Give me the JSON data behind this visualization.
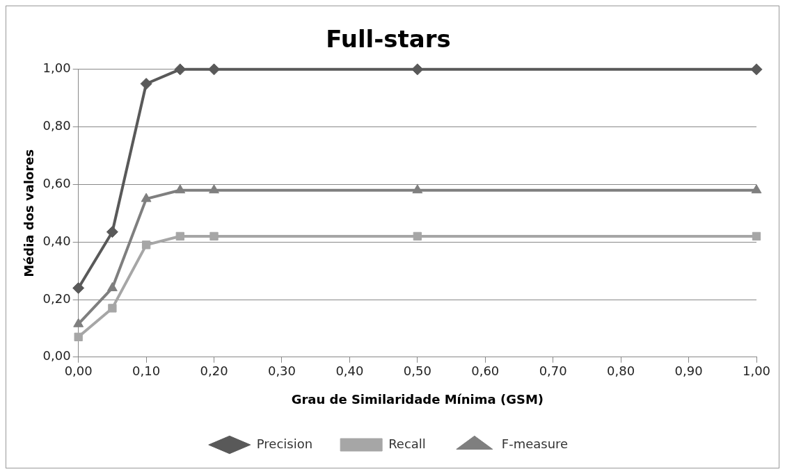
{
  "chart_data": {
    "type": "line",
    "title": "Full-stars",
    "xlabel": "Grau de Similaridade Mínima (GSM)",
    "ylabel": "Média dos valores",
    "x": [
      0,
      0.05,
      0.1,
      0.15,
      0.2,
      0.5,
      1
    ],
    "series": [
      {
        "name": "Precision",
        "color": "#595959",
        "marker": "diamond",
        "values": [
          0.24,
          0.435,
          0.95,
          1,
          1,
          1,
          1
        ]
      },
      {
        "name": "Recall",
        "color": "#a6a6a6",
        "marker": "square",
        "values": [
          0.07,
          0.17,
          0.39,
          0.42,
          0.42,
          0.42,
          0.42
        ]
      },
      {
        "name": "F-measure",
        "color": "#7f7f7f",
        "marker": "triangle",
        "values": [
          0.115,
          0.24,
          0.55,
          0.58,
          0.58,
          0.58,
          0.58
        ]
      }
    ],
    "xlim": [
      0,
      1
    ],
    "xticks": [
      {
        "value": 0,
        "label": "0,00"
      },
      {
        "value": 0.1,
        "label": "0,10"
      },
      {
        "value": 0.2,
        "label": "0,20"
      },
      {
        "value": 0.3,
        "label": "0,30"
      },
      {
        "value": 0.4,
        "label": "0,40"
      },
      {
        "value": 0.5,
        "label": "0,50"
      },
      {
        "value": 0.6,
        "label": "0,60"
      },
      {
        "value": 0.7,
        "label": "0,70"
      },
      {
        "value": 0.8,
        "label": "0,80"
      },
      {
        "value": 0.9,
        "label": "0,90"
      },
      {
        "value": 1,
        "label": "1,00"
      }
    ],
    "ylim": [
      0,
      1
    ],
    "yticks": [
      {
        "value": 0,
        "label": "0,00"
      },
      {
        "value": 0.2,
        "label": "0,20"
      },
      {
        "value": 0.4,
        "label": "0,40"
      },
      {
        "value": 0.6,
        "label": "0,60"
      },
      {
        "value": 0.8,
        "label": "0,80"
      },
      {
        "value": 1,
        "label": "1,00"
      }
    ],
    "grid": "y",
    "legend": "bottom",
    "line_style": "solid"
  }
}
